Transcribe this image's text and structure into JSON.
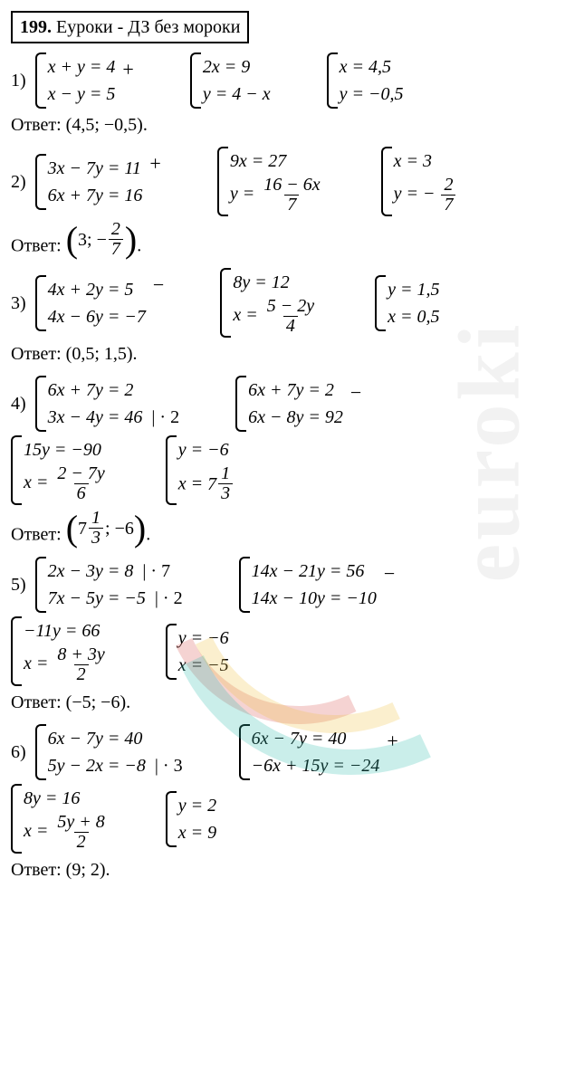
{
  "watermark": "euroki",
  "title": {
    "num": "199.",
    "text": "Еуроки - ДЗ без мороки"
  },
  "problems": [
    {
      "n": "1)",
      "groups": [
        {
          "lines": [
            "x + y = 4",
            "x − y = 5"
          ],
          "op": "+"
        },
        {
          "lines": [
            "2x = 9",
            "y = 4 − x"
          ]
        },
        {
          "lines": [
            "x = 4,5",
            "y = −0,5"
          ]
        }
      ],
      "answer": "Ответ: (4,5;  −0,5)."
    },
    {
      "n": "2)",
      "groups": [
        {
          "lines": [
            "3x − 7y = 11",
            "6x + 7y = 16"
          ],
          "op": "+"
        },
        {
          "lines": [
            "9x = 27",
            {
              "pre": "y = ",
              "frac": [
                "16 − 6x",
                "7"
              ]
            }
          ]
        },
        {
          "lines": [
            "x = 3",
            {
              "pre": "y = − ",
              "frac": [
                "2",
                "7"
              ]
            }
          ]
        }
      ],
      "answer_pre": "Ответ: ",
      "answer_paren": {
        "pre": "3;  − ",
        "frac": [
          "2",
          "7"
        ]
      },
      "answer_post": "."
    },
    {
      "n": "3)",
      "groups": [
        {
          "lines": [
            "4x + 2y = 5",
            "4x − 6y = −7"
          ],
          "op": "−"
        },
        {
          "lines": [
            "8y = 12",
            {
              "pre": "x = ",
              "frac": [
                "5 − 2y",
                "4"
              ]
            }
          ]
        },
        {
          "lines": [
            "y = 1,5",
            "x = 0,5"
          ]
        }
      ],
      "answer": "Ответ: (0,5; 1,5)."
    },
    {
      "n": "4)",
      "rows": [
        [
          {
            "lines": [
              "6x + 7y = 2",
              "3x − 4y = 46"
            ],
            "notes": [
              "",
              "| · 2"
            ]
          },
          {
            "lines": [
              "6x + 7y = 2",
              "6x − 8y = 92"
            ],
            "op": "−"
          }
        ],
        [
          {
            "lines": [
              "15y = −90",
              {
                "pre": "x = ",
                "frac": [
                  "2 − 7y",
                  "6"
                ]
              }
            ]
          },
          {
            "lines": [
              "y = −6",
              {
                "pre": "x = ",
                "mix": [
                  "7",
                  "1",
                  "3"
                ]
              }
            ]
          }
        ]
      ],
      "answer_pre": "Ответ: ",
      "answer_paren": {
        "mix": [
          "7",
          "1",
          "3"
        ],
        "post": ";  −6"
      },
      "answer_post": "."
    },
    {
      "n": "5)",
      "rows": [
        [
          {
            "lines": [
              "2x − 3y = 8",
              "7x − 5y = −5"
            ],
            "notes": [
              "| · 7",
              "| · 2"
            ]
          },
          {
            "lines": [
              "14x − 21y = 56",
              "14x − 10y = −10"
            ],
            "op": "−"
          }
        ],
        [
          {
            "lines": [
              "−11y = 66",
              {
                "pre": "x = ",
                "frac": [
                  "8 + 3y",
                  "2"
                ]
              }
            ]
          },
          {
            "lines": [
              "y = −6",
              "x = −5"
            ]
          }
        ]
      ],
      "answer": "Ответ: (−5;  −6)."
    },
    {
      "n": "6)",
      "rows": [
        [
          {
            "lines": [
              "6x − 7y = 40",
              "5y − 2x = −8"
            ],
            "notes": [
              "",
              "| · 3"
            ]
          },
          {
            "lines": [
              "6x − 7y = 40",
              "−6x + 15y = −24"
            ],
            "op": "+"
          }
        ],
        [
          {
            "lines": [
              "8y = 16",
              {
                "pre": "x = ",
                "frac": [
                  "5y + 8",
                  "2"
                ]
              }
            ]
          },
          {
            "lines": [
              "y = 2",
              "x = 9"
            ]
          }
        ]
      ],
      "answer": "Ответ: (9; 2)."
    }
  ]
}
